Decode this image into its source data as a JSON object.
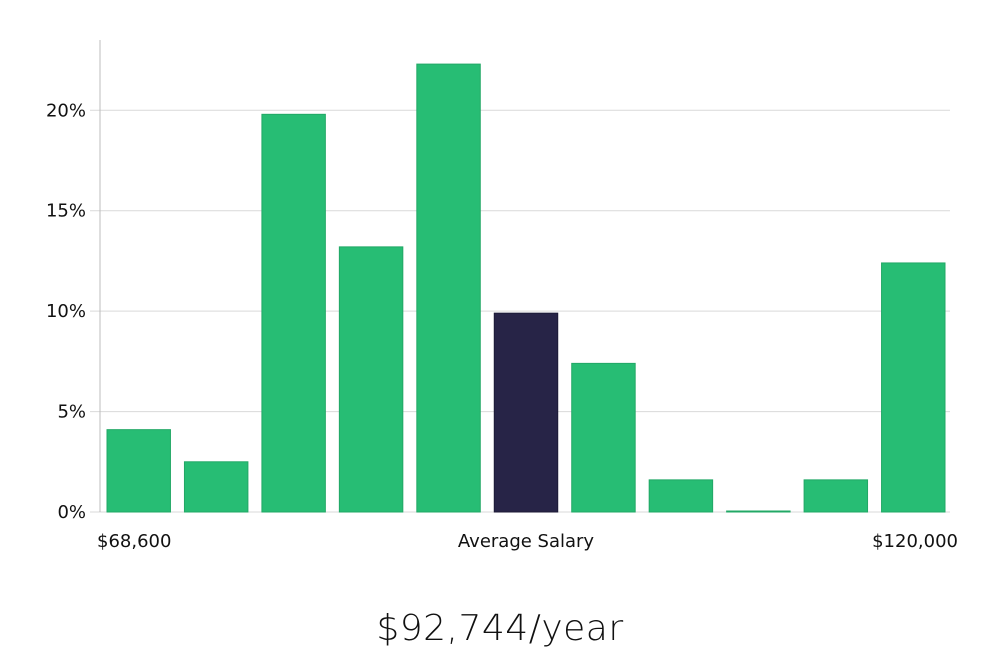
{
  "chart_data": {
    "type": "bar",
    "title": "",
    "xlabel": "",
    "ylabel": "",
    "categories": [
      "1",
      "2",
      "3",
      "4",
      "5",
      "6",
      "7",
      "8",
      "9",
      "10",
      "11"
    ],
    "values": [
      4.1,
      2.5,
      19.8,
      13.2,
      22.3,
      9.9,
      7.4,
      1.6,
      0.0,
      1.6,
      12.4
    ],
    "highlight_index": 5,
    "ylim": [
      0,
      23.5
    ],
    "y_ticks": [
      0,
      5,
      10,
      15,
      20
    ],
    "y_tick_labels": [
      "0%",
      "5%",
      "10%",
      "15%",
      "20%"
    ],
    "x_labels": {
      "left": "$68,600",
      "center": "Average Salary",
      "right": "$120,000"
    },
    "grid": true,
    "colors": {
      "bar": "#27bd74",
      "highlight": "#272447"
    }
  },
  "salary_display": "$92,744/year"
}
